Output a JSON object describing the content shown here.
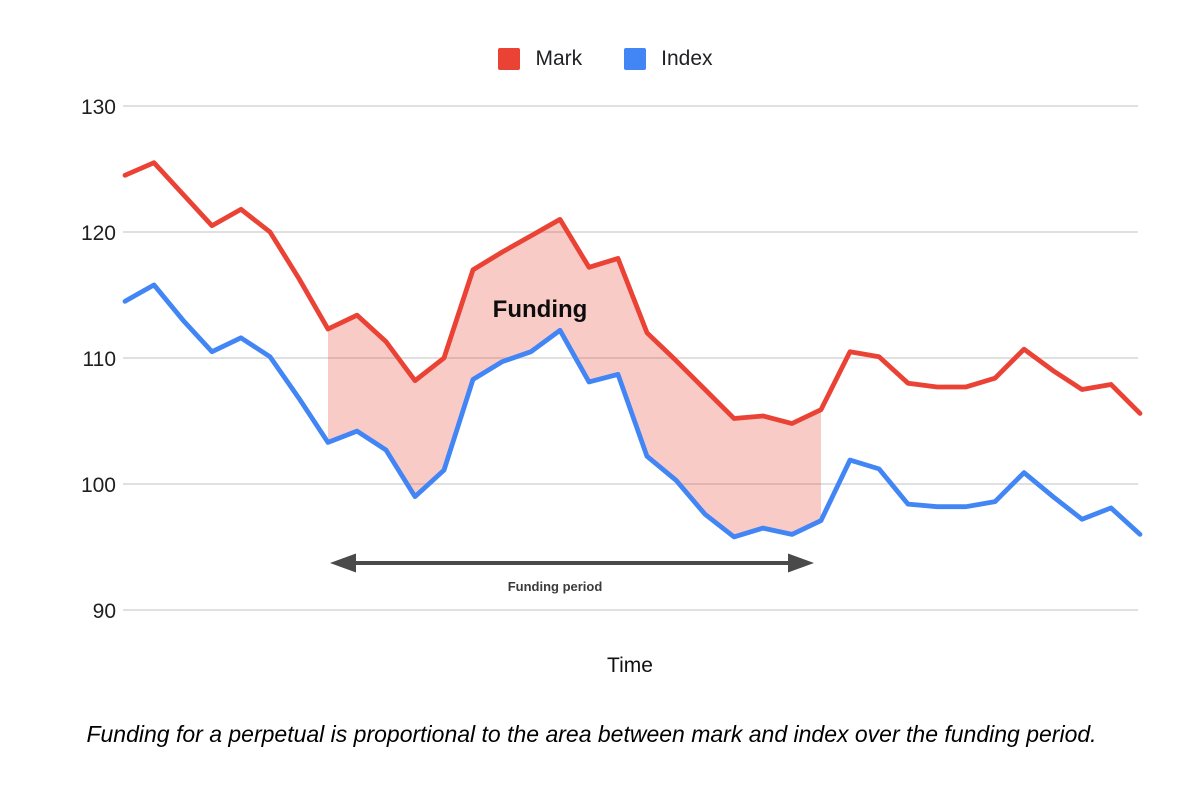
{
  "caption": "Funding for a perpetual is proportional to the area between mark and index over the funding period.",
  "chart_data": {
    "type": "line",
    "title": "",
    "xlabel": "Time",
    "ylabel": "",
    "ylim": [
      90,
      130
    ],
    "yticks": [
      130,
      120,
      110,
      100,
      90
    ],
    "grid": true,
    "legend_position": "top",
    "x": [
      0,
      1,
      2,
      3,
      4,
      5,
      6,
      7,
      8,
      9,
      10,
      11,
      12,
      13,
      14,
      15,
      16,
      17,
      18,
      19,
      20,
      21,
      22,
      23,
      24,
      25,
      26,
      27,
      28,
      29,
      30,
      31,
      32,
      33,
      34,
      35
    ],
    "series": [
      {
        "name": "Mark",
        "color": "#EA4335",
        "values": [
          124.5,
          125.5,
          123.0,
          120.5,
          121.8,
          120.0,
          116.3,
          112.3,
          113.4,
          111.3,
          108.2,
          110.0,
          117.0,
          118.4,
          119.7,
          121.0,
          117.2,
          117.9,
          112.0,
          109.8,
          107.5,
          105.2,
          105.4,
          104.8,
          105.9,
          110.5,
          110.1,
          108.0,
          107.7,
          107.7,
          108.4,
          110.7,
          109.0,
          107.5,
          107.9,
          105.6
        ]
      },
      {
        "name": "Index",
        "color": "#4285F4",
        "values": [
          114.5,
          115.8,
          113.0,
          110.5,
          111.6,
          110.1,
          106.8,
          103.3,
          104.2,
          102.7,
          99.0,
          101.1,
          108.3,
          109.7,
          110.5,
          112.2,
          108.1,
          108.7,
          102.2,
          100.3,
          97.6,
          95.8,
          96.5,
          96.0,
          97.1,
          101.9,
          101.2,
          98.4,
          98.2,
          98.2,
          98.6,
          100.9,
          99.0,
          97.2,
          98.1,
          96.0
        ]
      }
    ],
    "annotations": {
      "funding_label": "Funding",
      "funding_period_label": "Funding period",
      "funding_start_index": 7,
      "funding_end_index": 24,
      "funding_fill_color": "rgba(234,67,53,0.28)",
      "arrow_color": "#4a4a4a",
      "gridline_color": "#e0e0e0"
    }
  }
}
